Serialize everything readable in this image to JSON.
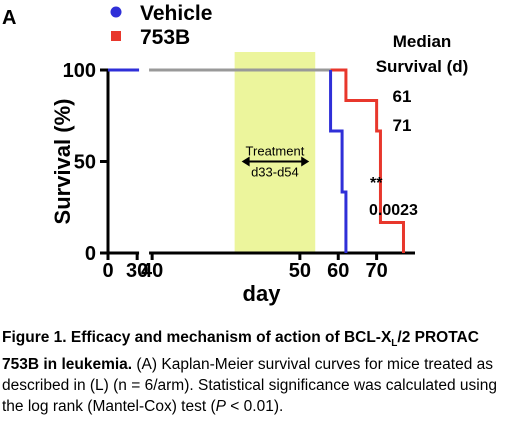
{
  "chart_data": {
    "type": "line",
    "chart_subtype": "kaplan-meier survival curve",
    "panel_label": "A",
    "xlabel": "day",
    "ylabel": "Survival (%)",
    "xlim": [
      0,
      80
    ],
    "ylim": [
      0,
      100
    ],
    "x_axis_break": true,
    "x_ticks": [
      0,
      30,
      40,
      50,
      60,
      70
    ],
    "x_tick_labels": [
      "0",
      "30",
      "40",
      "50",
      "60",
      "70"
    ],
    "y_ticks": [
      0,
      50,
      100
    ],
    "y_tick_labels": [
      "0",
      "50",
      "100"
    ],
    "grid": false,
    "legend_placement": "top-left",
    "series": [
      {
        "name": "Vehicle",
        "color": "#2f2fd8",
        "marker": "circle",
        "points": [
          [
            0,
            100
          ],
          [
            58,
            100
          ],
          [
            58,
            66.7
          ],
          [
            61,
            66.7
          ],
          [
            61,
            33.3
          ],
          [
            62,
            33.3
          ],
          [
            62,
            0
          ]
        ]
      },
      {
        "name": "753B",
        "color": "#e8372c",
        "marker": "square",
        "points": [
          [
            0,
            100
          ],
          [
            62,
            100
          ],
          [
            62,
            83.3
          ],
          [
            70,
            83.3
          ],
          [
            70,
            66.7
          ],
          [
            71,
            66.7
          ],
          [
            71,
            16.7
          ],
          [
            77,
            16.7
          ],
          [
            77,
            0
          ]
        ]
      }
    ],
    "shared_before_x": 58,
    "shared_color": "#999999",
    "treatment_window": {
      "x_start": 33,
      "x_end": 54,
      "color": "#ecf59c",
      "label_line1": "Treatment",
      "label_line2": "d33-d54",
      "arrow_y": 50
    },
    "median_survival": {
      "header_line1": "Median",
      "header_line2": "Survival (d)",
      "values": [
        "61",
        "71"
      ]
    },
    "significance": {
      "stars": "**",
      "p_value": "0.0023"
    }
  },
  "caption": {
    "bold_text": "Figure 1. Efficacy and mechanism of action of BCL-X",
    "bold_sub": "L",
    "bold_text_end": "/2 PROTAC 753B in leukemia.",
    "text_1": " (A) Kaplan-Meier survival curves for mice treated as described in (L) (n = 6/arm). Statistical significance was calculated using the log rank (Mantel-Cox) test (",
    "italic_p": "P",
    "text_2": " < 0.01)."
  }
}
